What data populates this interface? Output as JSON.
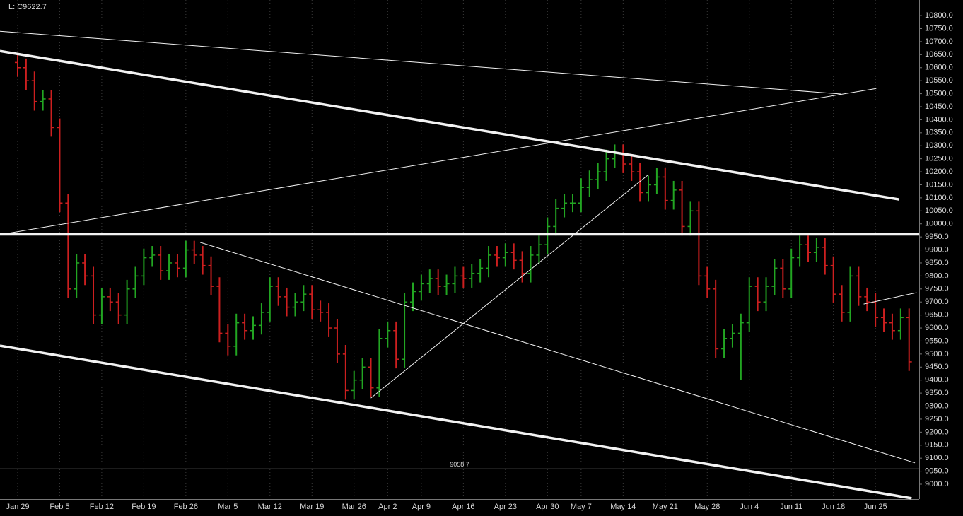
{
  "chart_data": {
    "type": "ohlc",
    "title": "L: C9622.7",
    "up_color": "#22a522",
    "down_color": "#cc1f1f",
    "grid": true,
    "categories": [
      "Jan 29",
      null,
      null,
      null,
      null,
      "Feb 5",
      null,
      null,
      null,
      null,
      "Feb 12",
      null,
      null,
      null,
      null,
      "Feb 19",
      null,
      null,
      null,
      null,
      "Feb 26",
      null,
      null,
      null,
      null,
      "Mar 5",
      null,
      null,
      null,
      null,
      "Mar 12",
      null,
      null,
      null,
      null,
      "Mar 19",
      null,
      null,
      null,
      null,
      "Mar 26",
      null,
      null,
      null,
      "Apr 2",
      null,
      null,
      null,
      "Apr 9",
      null,
      null,
      null,
      null,
      "Apr 16",
      null,
      null,
      null,
      null,
      "Apr 23",
      null,
      null,
      null,
      null,
      "Apr 30",
      null,
      null,
      null,
      "May 7",
      null,
      null,
      null,
      null,
      "May 14",
      null,
      null,
      null,
      null,
      "May 21",
      null,
      null,
      null,
      null,
      "May 28",
      null,
      null,
      null,
      null,
      "Jun 4",
      null,
      null,
      null,
      null,
      "Jun 11",
      null,
      null,
      null,
      null,
      "Jun 18",
      null,
      null,
      null,
      null,
      "Jun 25",
      null,
      null,
      null,
      null
    ],
    "open": [
      10620,
      10600,
      10550,
      10470,
      10480,
      10370,
      10080,
      9750,
      9850,
      9800,
      9650,
      9720,
      9700,
      9650,
      9750,
      9800,
      9870,
      9880,
      9820,
      9850,
      9830,
      9900,
      9880,
      9840,
      9760,
      9580,
      9530,
      9620,
      9590,
      9610,
      9660,
      9760,
      9720,
      9680,
      9700,
      9730,
      9670,
      9660,
      9600,
      9500,
      9360,
      9400,
      9450,
      9370,
      9560,
      9590,
      9480,
      9700,
      9740,
      9770,
      9790,
      9760,
      9770,
      9800,
      9790,
      9810,
      9830,
      9880,
      9870,
      9890,
      9860,
      9810,
      9880,
      9920,
      9990,
      10060,
      10080,
      10080,
      10140,
      10170,
      10200,
      10250,
      10270,
      10230,
      10200,
      10120,
      10150,
      10180,
      10090,
      10130,
      9990,
      10050,
      9800,
      9750,
      9520,
      9560,
      9580,
      9620,
      9760,
      9700,
      9760,
      9830,
      9750,
      9870,
      9920,
      9890,
      9910,
      9840,
      9730,
      9660,
      9800,
      9720,
      9700,
      9640,
      9620,
      9590,
      9640
    ],
    "high": [
      10655,
      10635,
      10585,
      10515,
      10515,
      10405,
      10115,
      9885,
      9885,
      9835,
      9755,
      9755,
      9735,
      9785,
      9835,
      9905,
      9915,
      9915,
      9885,
      9885,
      9935,
      9935,
      9915,
      9875,
      9795,
      9615,
      9655,
      9655,
      9645,
      9695,
      9795,
      9795,
      9755,
      9735,
      9765,
      9765,
      9705,
      9695,
      9635,
      9535,
      9435,
      9485,
      9485,
      9595,
      9625,
      9625,
      9735,
      9775,
      9805,
      9825,
      9825,
      9805,
      9835,
      9835,
      9845,
      9865,
      9915,
      9915,
      9925,
      9925,
      9895,
      9915,
      9955,
      10025,
      10095,
      10115,
      10115,
      10175,
      10205,
      10235,
      10285,
      10305,
      10305,
      10265,
      10235,
      10185,
      10215,
      10215,
      10165,
      10165,
      10085,
      10085,
      9835,
      9785,
      9595,
      9615,
      9655,
      9795,
      9795,
      9795,
      9865,
      9865,
      9905,
      9955,
      9955,
      9945,
      9945,
      9875,
      9765,
      9835,
      9835,
      9755,
      9735,
      9675,
      9655,
      9675,
      9675
    ],
    "low": [
      10565,
      10515,
      10435,
      10435,
      10335,
      10045,
      9715,
      9715,
      9765,
      9615,
      9615,
      9665,
      9615,
      9615,
      9715,
      9765,
      9835,
      9785,
      9785,
      9795,
      9795,
      9845,
      9805,
      9725,
      9545,
      9495,
      9495,
      9555,
      9555,
      9575,
      9625,
      9685,
      9645,
      9645,
      9665,
      9635,
      9625,
      9565,
      9465,
      9325,
      9325,
      9365,
      9335,
      9335,
      9525,
      9445,
      9445,
      9665,
      9705,
      9735,
      9725,
      9725,
      9735,
      9755,
      9755,
      9775,
      9795,
      9835,
      9835,
      9825,
      9775,
      9775,
      9845,
      9885,
      9955,
      10025,
      10045,
      10045,
      10105,
      10135,
      10165,
      10215,
      10195,
      10165,
      10085,
      10085,
      10115,
      10055,
      10055,
      9955,
      9955,
      9765,
      9715,
      9485,
      9485,
      9525,
      9400,
      9585,
      9665,
      9665,
      9725,
      9715,
      9715,
      9835,
      9855,
      9855,
      9805,
      9695,
      9625,
      9625,
      9685,
      9665,
      9605,
      9585,
      9555,
      9555,
      9435
    ],
    "close": [
      10600,
      10550,
      10470,
      10480,
      10370,
      10080,
      9750,
      9850,
      9800,
      9650,
      9720,
      9700,
      9650,
      9750,
      9800,
      9870,
      9880,
      9820,
      9850,
      9830,
      9900,
      9880,
      9840,
      9760,
      9580,
      9530,
      9620,
      9590,
      9610,
      9660,
      9760,
      9720,
      9680,
      9700,
      9730,
      9670,
      9660,
      9600,
      9500,
      9360,
      9400,
      9450,
      9370,
      9560,
      9590,
      9480,
      9700,
      9740,
      9770,
      9790,
      9760,
      9770,
      9800,
      9790,
      9810,
      9830,
      9880,
      9870,
      9890,
      9860,
      9810,
      9880,
      9920,
      9990,
      10060,
      10080,
      10080,
      10140,
      10170,
      10200,
      10250,
      10270,
      10230,
      10200,
      10120,
      10150,
      10180,
      10090,
      10130,
      9990,
      10050,
      9800,
      9750,
      9520,
      9560,
      9580,
      9620,
      9760,
      9700,
      9760,
      9830,
      9750,
      9870,
      9920,
      9890,
      9910,
      9840,
      9730,
      9660,
      9800,
      9720,
      9700,
      9640,
      9620,
      9590,
      9640,
      9470
    ],
    "xlim": [
      -2.1,
      107.2
    ],
    "ylim": [
      8943,
      10860
    ],
    "yticks": [
      {
        "value": 9000,
        "label": "9000.0"
      },
      {
        "value": 9050,
        "label": "9050.0"
      },
      {
        "value": 9100,
        "label": "9100.0"
      },
      {
        "value": 9150,
        "label": "9150.0"
      },
      {
        "value": 9200,
        "label": "9200.0"
      },
      {
        "value": 9250,
        "label": "9250.0"
      },
      {
        "value": 9300,
        "label": "9300.0"
      },
      {
        "value": 9350,
        "label": "9350.0"
      },
      {
        "value": 9400,
        "label": "9400.0"
      },
      {
        "value": 9450,
        "label": "9450.0"
      },
      {
        "value": 9500,
        "label": "9500.0"
      },
      {
        "value": 9550,
        "label": "9550.0"
      },
      {
        "value": 9600,
        "label": "9600.0"
      },
      {
        "value": 9650,
        "label": "9650.0"
      },
      {
        "value": 9700,
        "label": "9700.0"
      },
      {
        "value": 9750,
        "label": "9750.0"
      },
      {
        "value": 9800,
        "label": "9800.0"
      },
      {
        "value": 9850,
        "label": "9850.0"
      },
      {
        "value": 9900,
        "label": "9900.0"
      },
      {
        "value": 9950,
        "label": "9950.0"
      },
      {
        "value": 10000,
        "label": "10000.0"
      },
      {
        "value": 10050,
        "label": "10050.0"
      },
      {
        "value": 10100,
        "label": "10100.0"
      },
      {
        "value": 10150,
        "label": "10150.0"
      },
      {
        "value": 10200,
        "label": "10200.0"
      },
      {
        "value": 10250,
        "label": "10250.0"
      },
      {
        "value": 10300,
        "label": "10300.0"
      },
      {
        "value": 10350,
        "label": "10350.0"
      },
      {
        "value": 10400,
        "label": "10400.0"
      },
      {
        "value": 10450,
        "label": "10450.0"
      },
      {
        "value": 10500,
        "label": "10500.0"
      },
      {
        "value": 10550,
        "label": "10550.0"
      },
      {
        "value": 10600,
        "label": "10600.0"
      },
      {
        "value": 10650,
        "label": "10650.0"
      },
      {
        "value": 10700,
        "label": "10700.0"
      },
      {
        "value": 10750,
        "label": "10750.0"
      },
      {
        "value": 10800,
        "label": "10800.0"
      }
    ],
    "trendlines": [
      {
        "x": [
          -2.1,
          97.9
        ],
        "y": [
          10740,
          10499
        ],
        "style": "thin"
      },
      {
        "x": [
          -2.1,
          104.8
        ],
        "y": [
          10664,
          10094
        ],
        "style": "thick"
      },
      {
        "x": [
          -2.1,
          102.1
        ],
        "y": [
          9959,
          10520
        ],
        "style": "thin"
      },
      {
        "x": [
          -2.1,
          107.2
        ],
        "y": [
          9960,
          9960
        ],
        "style": "thick"
      },
      {
        "x": [
          -2.1,
          106.3
        ],
        "y": [
          9532,
          8946
        ],
        "style": "thick"
      },
      {
        "x": [
          21.7,
          106.7
        ],
        "y": [
          9929,
          9082
        ],
        "style": "thin"
      },
      {
        "x": [
          42,
          75
        ],
        "y": [
          9331,
          10189
        ],
        "style": "thin"
      },
      {
        "x": [
          100.6,
          106.9
        ],
        "y": [
          9692,
          9736
        ],
        "style": "thin"
      }
    ],
    "hline": {
      "value": 9058.7,
      "label": "9058.7"
    }
  }
}
